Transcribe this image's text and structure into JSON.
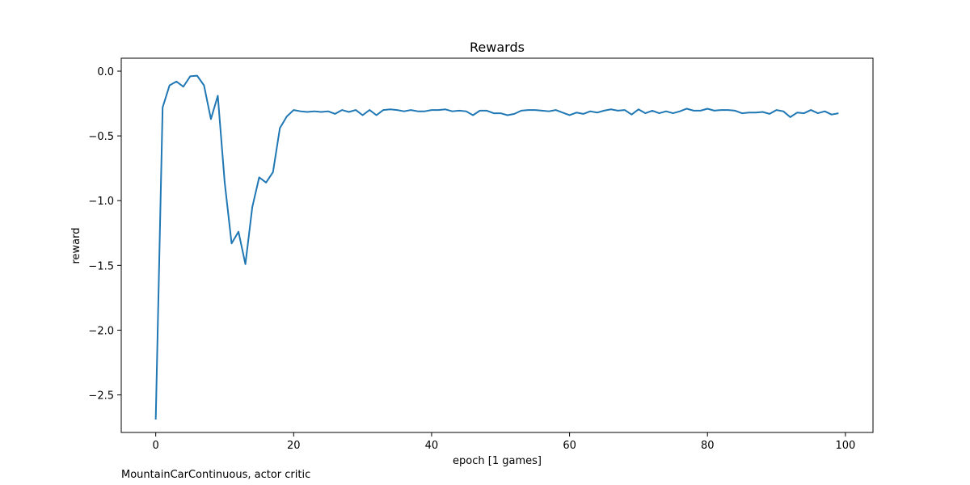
{
  "chart_data": {
    "type": "line",
    "title": "Rewards",
    "xlabel": "epoch [1 games]",
    "ylabel": "reward",
    "xlim": [
      -5,
      104
    ],
    "ylim": [
      -2.79,
      0.1
    ],
    "xticks": [
      0,
      20,
      40,
      60,
      80,
      100
    ],
    "yticks": [
      0.0,
      -0.5,
      -1.0,
      -1.5,
      -2.0,
      -2.5
    ],
    "xtick_labels": [
      "0",
      "20",
      "40",
      "60",
      "80",
      "100"
    ],
    "ytick_labels": [
      "0.0",
      "−0.5",
      "−1.0",
      "−1.5",
      "−2.0",
      "−2.5"
    ],
    "grid": false,
    "color": "#1f77b4",
    "series": [
      {
        "x": [
          0,
          1,
          2,
          3,
          4,
          5,
          6,
          7,
          8,
          9,
          10,
          11,
          12,
          13,
          14,
          15,
          16,
          17,
          18,
          19,
          20,
          21,
          22,
          23,
          24,
          25,
          26,
          27,
          28,
          29,
          30,
          31,
          32,
          33,
          34,
          35,
          36,
          37,
          38,
          39,
          40,
          41,
          42,
          43,
          44,
          45,
          46,
          47,
          48,
          49,
          50,
          51,
          52,
          53,
          54,
          55,
          56,
          57,
          58,
          59,
          60,
          61,
          62,
          63,
          64,
          65,
          66,
          67,
          68,
          69,
          70,
          71,
          72,
          73,
          74,
          75,
          76,
          77,
          78,
          79,
          80,
          81,
          82,
          83,
          84,
          85,
          86,
          87,
          88,
          89,
          90,
          91,
          92,
          93,
          94,
          95,
          96,
          97,
          98,
          99
        ],
        "values": [
          -2.69,
          -0.28,
          -0.11,
          -0.08,
          -0.12,
          -0.04,
          -0.035,
          -0.11,
          -0.37,
          -0.19,
          -0.86,
          -1.33,
          -1.24,
          -1.49,
          -1.05,
          -0.82,
          -0.86,
          -0.78,
          -0.44,
          -0.35,
          -0.3,
          -0.31,
          -0.315,
          -0.31,
          -0.315,
          -0.31,
          -0.33,
          -0.3,
          -0.315,
          -0.3,
          -0.34,
          -0.3,
          -0.34,
          -0.3,
          -0.295,
          -0.3,
          -0.31,
          -0.3,
          -0.31,
          -0.31,
          -0.3,
          -0.3,
          -0.295,
          -0.31,
          -0.305,
          -0.31,
          -0.34,
          -0.305,
          -0.305,
          -0.325,
          -0.325,
          -0.34,
          -0.33,
          -0.305,
          -0.3,
          -0.3,
          -0.305,
          -0.31,
          -0.3,
          -0.32,
          -0.34,
          -0.32,
          -0.33,
          -0.31,
          -0.32,
          -0.305,
          -0.295,
          -0.305,
          -0.3,
          -0.335,
          -0.295,
          -0.325,
          -0.305,
          -0.325,
          -0.31,
          -0.325,
          -0.31,
          -0.29,
          -0.305,
          -0.305,
          -0.29,
          -0.305,
          -0.3,
          -0.3,
          -0.305,
          -0.325,
          -0.32,
          -0.32,
          -0.315,
          -0.33,
          -0.3,
          -0.31,
          -0.355,
          -0.32,
          -0.325,
          -0.3,
          -0.325,
          -0.31,
          -0.335,
          -0.325
        ]
      }
    ]
  },
  "caption": "MountainCarContinuous, actor critic"
}
